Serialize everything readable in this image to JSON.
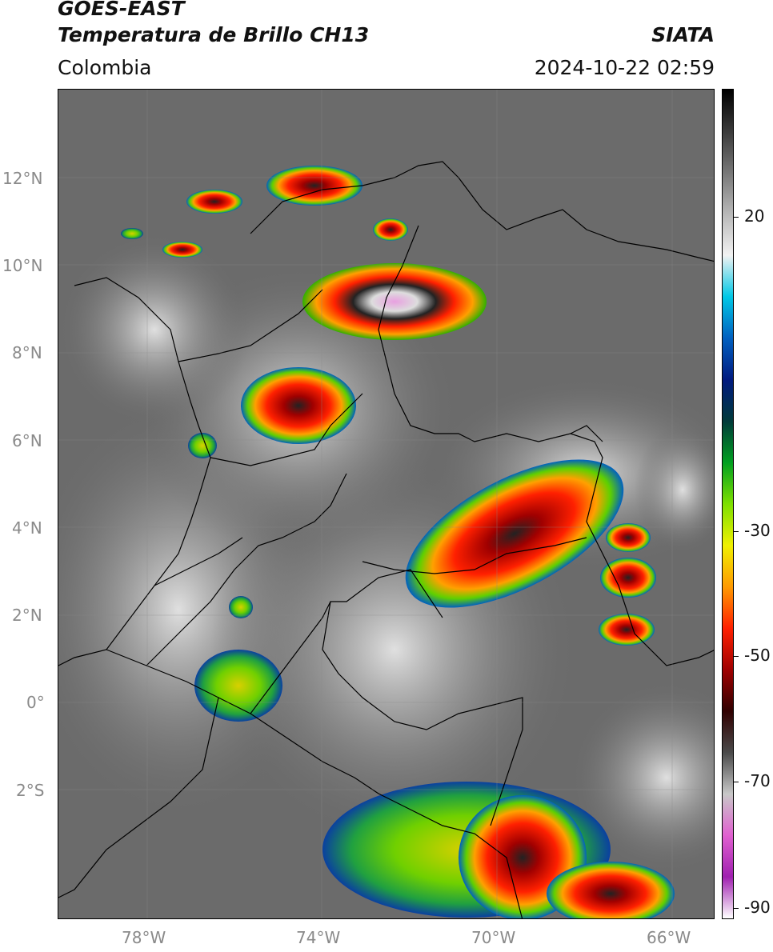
{
  "header": {
    "title_line1": "GOES-EAST",
    "title_line2": "Temperatura de Brillo CH13",
    "brand": "SIATA",
    "region": "Colombia",
    "datetime": "2024-10-22 02:59"
  },
  "map": {
    "lat_labels": [
      "12°N",
      "10°N",
      "8°N",
      "6°N",
      "4°N",
      "2°N",
      "0°",
      "2°S"
    ],
    "lon_labels": [
      "78°W",
      "74°W",
      "70°W",
      "66°W"
    ],
    "background_color": "#6b6b6b"
  },
  "colorbar": {
    "labels": [
      "20",
      "-30",
      "-50",
      "-70",
      "-90"
    ],
    "colors": [
      "#000000",
      "#3a3a3a",
      "#777777",
      "#b8b8b8",
      "#f2f2f2",
      "#00c8e6",
      "#0060c0",
      "#001a80",
      "#003a3a",
      "#00a020",
      "#7ee000",
      "#f0f000",
      "#ff9a00",
      "#ff2000",
      "#a00000",
      "#300000",
      "#4a4a4a",
      "#c8c8c8",
      "#e060d0",
      "#a020b0",
      "#ffffff"
    ]
  }
}
